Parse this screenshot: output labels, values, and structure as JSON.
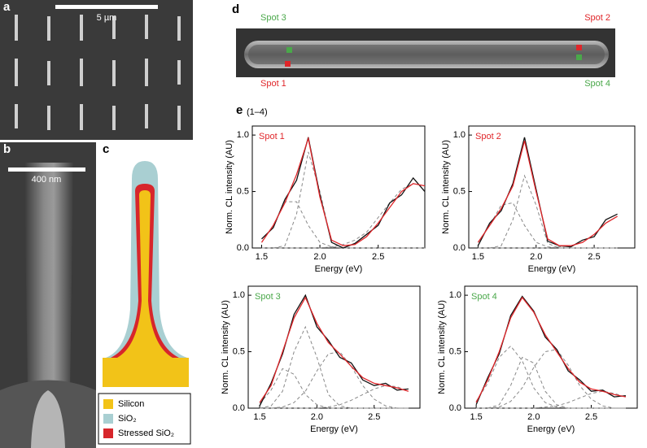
{
  "figure": {
    "panel_labels": [
      "a",
      "b",
      "c",
      "d",
      "e"
    ],
    "e_sublabel": "(1–4)",
    "a_scale": "5 µm",
    "b_scale": "400 nm",
    "c_legend": [
      {
        "label": "Silicon",
        "color": "#f2c318"
      },
      {
        "label": "SiO₂",
        "color": "#a9cfd2"
      },
      {
        "label": "Stressed SiO₂",
        "color": "#d7262b"
      }
    ],
    "d_spots": [
      {
        "label": "Spot 3",
        "color": "#4aa84a"
      },
      {
        "label": "Spot 2",
        "color": "#e0262a"
      },
      {
        "label": "Spot 1",
        "color": "#e0262a"
      },
      {
        "label": "Spot 4",
        "color": "#4aa84a"
      }
    ]
  },
  "chart_data": [
    {
      "type": "line",
      "title": "Spot 1",
      "title_color": "#e0262a",
      "xlabel": "Energy (eV)",
      "ylabel": "Norm. CL intensity (AU)",
      "x": [
        1.5,
        1.6,
        1.7,
        1.8,
        1.9,
        2.0,
        2.1,
        2.2,
        2.3,
        2.4,
        2.5,
        2.6,
        2.7,
        2.8,
        2.9
      ],
      "xlim": [
        1.42,
        2.9
      ],
      "xticks": [
        1.5,
        {
          "value": 2,
          "label": "2.0"
        },
        2.5
      ],
      "ylim": [
        0,
        1.08
      ],
      "yticks": [
        {
          "value": 0,
          "label": "0.0"
        },
        {
          "value": 0.5,
          "label": "0.5"
        },
        {
          "value": 1,
          "label": "1.0"
        }
      ],
      "series": [
        {
          "color": "#888888",
          "dash": true,
          "values": [
            0.05,
            0.2,
            0.41,
            0.41,
            0.2,
            0.05,
            0.01,
            0,
            0,
            0,
            0,
            0,
            0,
            0,
            0
          ]
        },
        {
          "color": "#888888",
          "dash": true,
          "values": [
            0,
            0,
            0.02,
            0.3,
            0.85,
            0.5,
            0.05,
            0,
            0,
            0,
            0,
            0,
            0,
            0,
            0
          ]
        },
        {
          "color": "#888888",
          "dash": true,
          "values": [
            0,
            0,
            0,
            0,
            0,
            0,
            0.01,
            0.03,
            0.07,
            0.14,
            0.27,
            0.4,
            0.52,
            0.57,
            0.55
          ]
        },
        {
          "color": "#111111",
          "dash": false,
          "values": [
            0.08,
            0.18,
            0.43,
            0.6,
            0.98,
            0.47,
            0.05,
            0,
            0.04,
            0.12,
            0.2,
            0.4,
            0.47,
            0.62,
            0.5
          ]
        },
        {
          "color": "#e0262a",
          "dash": false,
          "values": [
            0.05,
            0.2,
            0.4,
            0.65,
            0.97,
            0.45,
            0.07,
            0.02,
            0.03,
            0.1,
            0.22,
            0.36,
            0.5,
            0.57,
            0.55
          ]
        }
      ]
    },
    {
      "type": "line",
      "title": "Spot 2",
      "title_color": "#e0262a",
      "xlabel": "Energy (eV)",
      "ylabel": "Norm. CL intensity (AU)",
      "x": [
        1.5,
        1.6,
        1.7,
        1.8,
        1.9,
        2.0,
        2.1,
        2.2,
        2.3,
        2.4,
        2.5,
        2.6,
        2.7
      ],
      "xlim": [
        1.42,
        2.85
      ],
      "xticks": [
        1.5,
        {
          "value": 2,
          "label": "2.0"
        },
        2.5
      ],
      "ylim": [
        0,
        1.08
      ],
      "yticks": [
        {
          "value": 0,
          "label": "0.0"
        },
        {
          "value": 0.5,
          "label": "0.5"
        },
        {
          "value": 1,
          "label": "1.0"
        }
      ],
      "series": [
        {
          "color": "#888888",
          "dash": true,
          "values": [
            0.05,
            0.2,
            0.38,
            0.4,
            0.2,
            0.05,
            0.01,
            0,
            0,
            0,
            0,
            0,
            0
          ]
        },
        {
          "color": "#888888",
          "dash": true,
          "values": [
            0,
            0,
            0.02,
            0.25,
            0.64,
            0.38,
            0.04,
            0,
            0,
            0,
            0,
            0,
            0
          ]
        },
        {
          "color": "#888888",
          "dash": true,
          "values": [
            0,
            0,
            0,
            0,
            0,
            0,
            0,
            0.01,
            0.02,
            0.05,
            0.12,
            0.22,
            0.28
          ]
        },
        {
          "color": "#111111",
          "dash": false,
          "values": [
            0.02,
            0.22,
            0.33,
            0.57,
            0.98,
            0.52,
            0.06,
            0.02,
            0.01,
            0.07,
            0.1,
            0.25,
            0.3
          ]
        },
        {
          "color": "#e0262a",
          "dash": false,
          "values": [
            0.05,
            0.2,
            0.35,
            0.55,
            0.95,
            0.5,
            0.08,
            0.02,
            0.02,
            0.05,
            0.12,
            0.22,
            0.28
          ]
        }
      ]
    },
    {
      "type": "line",
      "title": "Spot 3",
      "title_color": "#4aa84a",
      "xlabel": "Energy (eV)",
      "ylabel": "Norm. CL intensity (AU)",
      "x": [
        1.5,
        1.6,
        1.7,
        1.8,
        1.9,
        2.0,
        2.1,
        2.2,
        2.3,
        2.4,
        2.5,
        2.6,
        2.7,
        2.8
      ],
      "xlim": [
        1.4,
        2.9
      ],
      "xticks": [
        1.5,
        {
          "value": 2,
          "label": "2.0"
        },
        2.5
      ],
      "ylim": [
        0,
        1.08
      ],
      "yticks": [
        {
          "value": 0,
          "label": "0.0"
        },
        {
          "value": 0.5,
          "label": "0.5"
        },
        {
          "value": 1,
          "label": "1.0"
        }
      ],
      "series": [
        {
          "color": "#888888",
          "dash": true,
          "values": [
            0.04,
            0.16,
            0.35,
            0.3,
            0.12,
            0.03,
            0,
            0,
            0,
            0,
            0,
            0,
            0,
            0
          ]
        },
        {
          "color": "#888888",
          "dash": true,
          "values": [
            0,
            0.02,
            0.15,
            0.5,
            0.72,
            0.45,
            0.12,
            0.02,
            0,
            0,
            0,
            0,
            0,
            0
          ]
        },
        {
          "color": "#888888",
          "dash": true,
          "values": [
            0,
            0,
            0.01,
            0.05,
            0.15,
            0.33,
            0.48,
            0.5,
            0.37,
            0.2,
            0.08,
            0.02,
            0,
            0
          ]
        },
        {
          "color": "#888888",
          "dash": true,
          "values": [
            0,
            0,
            0,
            0,
            0,
            0,
            0.01,
            0.03,
            0.07,
            0.12,
            0.17,
            0.2,
            0.19,
            0.15
          ]
        },
        {
          "color": "#111111",
          "dash": false,
          "values": [
            0.02,
            0.22,
            0.48,
            0.83,
            1.0,
            0.72,
            0.6,
            0.45,
            0.4,
            0.25,
            0.2,
            0.22,
            0.16,
            0.17
          ]
        },
        {
          "color": "#e0262a",
          "dash": false,
          "values": [
            0.05,
            0.2,
            0.5,
            0.8,
            0.98,
            0.75,
            0.58,
            0.48,
            0.37,
            0.27,
            0.22,
            0.2,
            0.18,
            0.15
          ]
        }
      ]
    },
    {
      "type": "line",
      "title": "Spot 4",
      "title_color": "#4aa84a",
      "xlabel": "Energy (eV)",
      "ylabel": "Norm. CL intensity (AU)",
      "x": [
        1.5,
        1.6,
        1.7,
        1.8,
        1.9,
        2.0,
        2.1,
        2.2,
        2.3,
        2.4,
        2.5,
        2.6,
        2.7,
        2.8
      ],
      "xlim": [
        1.4,
        2.9
      ],
      "xticks": [
        1.5,
        {
          "value": 2,
          "label": "2.0"
        },
        2.5
      ],
      "ylim": [
        0,
        1.08
      ],
      "yticks": [
        {
          "value": 0,
          "label": "0.0"
        },
        {
          "value": 0.5,
          "label": "0.5"
        },
        {
          "value": 1,
          "label": "1.0"
        }
      ],
      "series": [
        {
          "color": "#888888",
          "dash": true,
          "values": [
            0.06,
            0.22,
            0.45,
            0.55,
            0.42,
            0.18,
            0.05,
            0.01,
            0,
            0,
            0,
            0,
            0,
            0
          ]
        },
        {
          "color": "#888888",
          "dash": true,
          "values": [
            0,
            0,
            0.03,
            0.2,
            0.45,
            0.4,
            0.15,
            0.03,
            0,
            0,
            0,
            0,
            0,
            0
          ]
        },
        {
          "color": "#888888",
          "dash": true,
          "values": [
            0,
            0,
            0.01,
            0.06,
            0.18,
            0.36,
            0.5,
            0.52,
            0.38,
            0.2,
            0.08,
            0.02,
            0,
            0
          ]
        },
        {
          "color": "#888888",
          "dash": true,
          "values": [
            0,
            0,
            0,
            0,
            0,
            0,
            0.01,
            0.02,
            0.05,
            0.09,
            0.13,
            0.15,
            0.13,
            0.1
          ]
        },
        {
          "color": "#111111",
          "dash": false,
          "values": [
            0.03,
            0.27,
            0.48,
            0.82,
            0.99,
            0.86,
            0.63,
            0.52,
            0.33,
            0.25,
            0.15,
            0.16,
            0.1,
            0.11
          ]
        },
        {
          "color": "#e0262a",
          "dash": false,
          "values": [
            0.05,
            0.25,
            0.5,
            0.8,
            0.98,
            0.85,
            0.65,
            0.5,
            0.35,
            0.23,
            0.17,
            0.15,
            0.12,
            0.1
          ]
        }
      ]
    }
  ]
}
